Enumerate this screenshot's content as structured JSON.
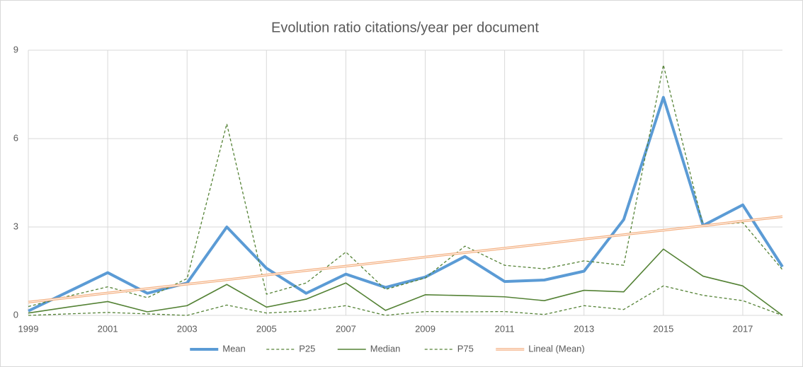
{
  "chart_data": {
    "type": "line",
    "title": "Evolution ratio citations/year per document",
    "x": [
      1999,
      2000,
      2001,
      2002,
      2003,
      2004,
      2005,
      2006,
      2007,
      2008,
      2009,
      2010,
      2011,
      2012,
      2013,
      2014,
      2015,
      2016,
      2017,
      2018
    ],
    "xlim": [
      1999,
      2018
    ],
    "xticks": [
      1999,
      2001,
      2003,
      2005,
      2007,
      2009,
      2011,
      2013,
      2015,
      2017
    ],
    "ylim": [
      0,
      9
    ],
    "yticks": [
      0,
      3,
      6,
      9
    ],
    "grid": true,
    "legend": "bottom",
    "series": [
      {
        "name": "Mean",
        "color": "#5b9bd5",
        "width": 4,
        "dashed": false,
        "values": [
          0.15,
          0.8,
          1.45,
          0.75,
          1.1,
          3.0,
          1.6,
          0.75,
          1.4,
          0.95,
          1.3,
          2.0,
          1.15,
          1.2,
          1.5,
          3.25,
          7.4,
          3.05,
          3.75,
          1.65
        ]
      },
      {
        "name": "P25",
        "color": "#548235",
        "width": 1.3,
        "dashed": true,
        "values": [
          0,
          0.05,
          0.1,
          0.05,
          0,
          0.35,
          0.08,
          0.15,
          0.33,
          0,
          0.13,
          0.12,
          0.13,
          0.03,
          0.33,
          0.2,
          1.0,
          0.68,
          0.5,
          0
        ]
      },
      {
        "name": "Median",
        "color": "#548235",
        "width": 1.6,
        "dashed": false,
        "values": [
          0.08,
          0.28,
          0.47,
          0.12,
          0.33,
          1.05,
          0.28,
          0.55,
          1.1,
          0.17,
          0.7,
          0.67,
          0.63,
          0.5,
          0.85,
          0.8,
          2.25,
          1.33,
          1.0,
          0
        ]
      },
      {
        "name": "P75",
        "color": "#548235",
        "width": 1.3,
        "dashed": true,
        "values": [
          0.3,
          0.65,
          0.97,
          0.6,
          1.25,
          6.5,
          0.72,
          1.1,
          2.15,
          0.88,
          1.27,
          2.35,
          1.7,
          1.58,
          1.85,
          1.7,
          8.5,
          3.05,
          3.15,
          1.55
        ]
      },
      {
        "name": "Lineal (Mean)",
        "color": "#f4b183",
        "width": 3.5,
        "dashed": false,
        "double": true,
        "values": [
          0.45,
          0.6,
          0.76,
          0.91,
          1.06,
          1.21,
          1.37,
          1.52,
          1.67,
          1.82,
          1.98,
          2.13,
          2.28,
          2.43,
          2.59,
          2.74,
          2.89,
          3.04,
          3.2,
          3.35
        ]
      }
    ]
  }
}
